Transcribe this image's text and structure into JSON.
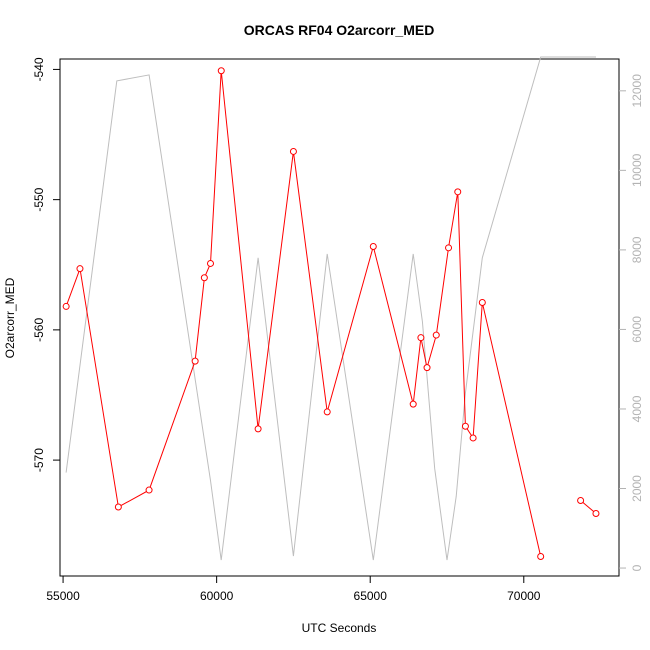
{
  "chart_data": {
    "type": "line",
    "title": "ORCAS RF04 O2arcorr_MED",
    "xlabel": "UTC Seconds",
    "ylabel": "O2arcorr_MED",
    "xlim": [
      54900,
      73100
    ],
    "ylim": [
      -578.9,
      -539.2
    ],
    "y2lim": [
      -200,
      12800
    ],
    "x_ticks": [
      55000,
      60000,
      65000,
      70000
    ],
    "y_ticks": [
      -540,
      -550,
      -560,
      -570
    ],
    "y2_ticks": [
      0,
      2000,
      4000,
      6000,
      8000,
      10000,
      12000
    ],
    "x_tick_labels": [
      "55000",
      "60000",
      "65000",
      "70000"
    ],
    "y_tick_labels": [
      "-540",
      "-550",
      "-560",
      "-570"
    ],
    "y2_tick_labels": [
      "0",
      "2000",
      "4000",
      "6000",
      "8000",
      "10000",
      "12000"
    ],
    "grid": false,
    "series": [
      {
        "color": "#ff0000",
        "axis": "left",
        "marker": "open-circle",
        "segments": [
          [
            [
              55100,
              -558.2
            ],
            [
              55550,
              -555.3
            ],
            [
              56800,
              -573.6
            ],
            [
              57800,
              -572.3
            ],
            [
              59300,
              -562.4
            ],
            [
              59600,
              -556.0
            ],
            [
              59800,
              -554.9
            ],
            [
              60150,
              -540.1
            ],
            [
              61350,
              -567.6
            ],
            [
              62500,
              -546.3
            ],
            [
              63600,
              -566.3
            ],
            [
              65100,
              -553.6
            ],
            [
              66400,
              -565.7
            ],
            [
              66650,
              -560.6
            ],
            [
              66850,
              -562.9
            ],
            [
              67150,
              -560.4
            ],
            [
              67550,
              -553.7
            ],
            [
              67850,
              -549.4
            ],
            [
              68100,
              -567.4
            ],
            [
              68350,
              -568.3
            ],
            [
              68650,
              -557.9
            ],
            [
              70550,
              -577.4
            ]
          ],
          [
            [
              71850,
              -573.1
            ],
            [
              72350,
              -574.1
            ]
          ]
        ]
      },
      {
        "color": "#bebebe",
        "axis": "right",
        "marker": "none",
        "segments": [
          [
            [
              55100,
              2400
            ],
            [
              56750,
              12250
            ],
            [
              57800,
              12400
            ],
            [
              59800,
              2200
            ],
            [
              60150,
              200
            ],
            [
              61350,
              7800
            ],
            [
              62500,
              300
            ],
            [
              63600,
              7900
            ],
            [
              65100,
              200
            ],
            [
              66400,
              7900
            ],
            [
              66700,
              6200
            ],
            [
              67100,
              2500
            ],
            [
              67500,
              200
            ],
            [
              67800,
              1800
            ],
            [
              68100,
              4400
            ],
            [
              68650,
              7800
            ],
            [
              70550,
              12850
            ],
            [
              72350,
              12850
            ]
          ]
        ]
      }
    ]
  }
}
